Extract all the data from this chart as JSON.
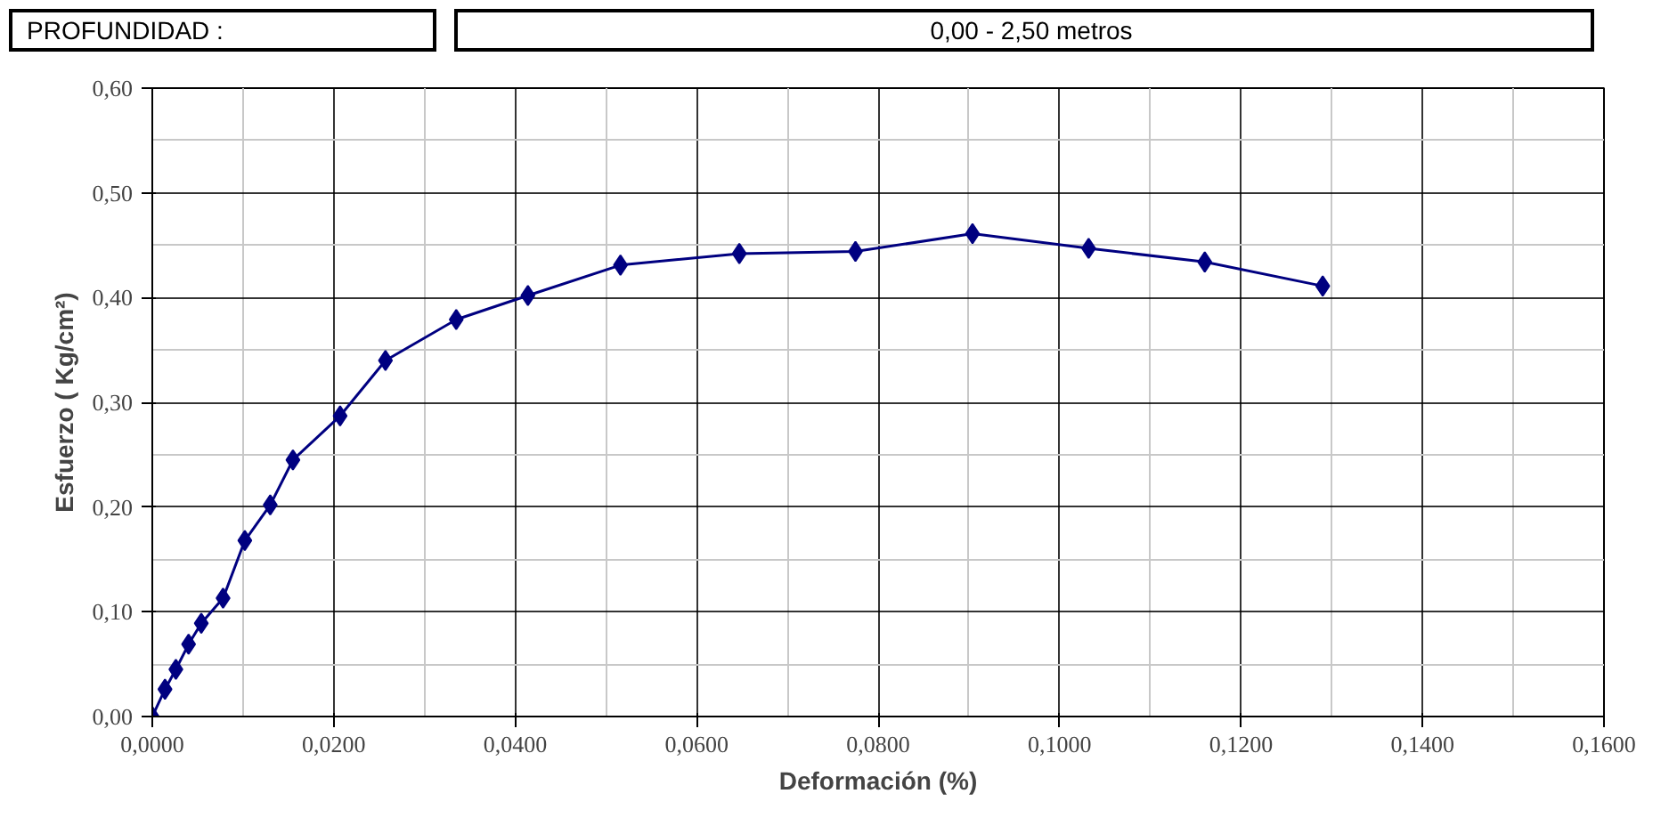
{
  "chart_data": {
    "type": "line",
    "xlabel": "Deformación (%)",
    "ylabel": "Esfuerzo ( Kg/cm²)",
    "annotations": [
      "PROFUNDIDAD :",
      "0,00 - 2,50    metros"
    ],
    "x": [
      0,
      0.0014,
      0.0026,
      0.004,
      0.0054,
      0.0078,
      0.0102,
      0.013,
      0.0155,
      0.0207,
      0.0257,
      0.0335,
      0.0414,
      0.0516,
      0.0647,
      0.0775,
      0.0904,
      0.1032,
      0.116,
      0.129
    ],
    "series": [
      {
        "color": "#000080",
        "values": [
          0,
          0.026,
          0.045,
          0.069,
          0.089,
          0.113,
          0.168,
          0.202,
          0.245,
          0.287,
          0.34,
          0.379,
          0.402,
          0.431,
          0.442,
          0.444,
          0.461,
          0.447,
          0.434,
          0.411
        ]
      }
    ],
    "xlim": [
      0,
      0.16
    ],
    "ylim": [
      0,
      0.6
    ],
    "xticks": [
      {
        "value": 0,
        "label": "0,0000"
      },
      {
        "value": 0.02,
        "label": "0,0200"
      },
      {
        "value": 0.04,
        "label": "0,0400"
      },
      {
        "value": 0.06,
        "label": "0,0600"
      },
      {
        "value": 0.08,
        "label": "0,0800"
      },
      {
        "value": 0.1,
        "label": "0,1000"
      },
      {
        "value": 0.12,
        "label": "0,1200"
      },
      {
        "value": 0.14,
        "label": "0,1400"
      },
      {
        "value": 0.16,
        "label": "0,1600"
      }
    ],
    "yticks": [
      {
        "value": 0,
        "label": "0,00"
      },
      {
        "value": 0.1,
        "label": "0,10"
      },
      {
        "value": 0.2,
        "label": "0,20"
      },
      {
        "value": 0.3,
        "label": "0,30"
      },
      {
        "value": 0.4,
        "label": "0,40"
      },
      {
        "value": 0.5,
        "label": "0,50"
      },
      {
        "value": 0.6,
        "label": "0,60"
      }
    ],
    "grid": true,
    "marker": "diamond",
    "line_style": "solid"
  }
}
